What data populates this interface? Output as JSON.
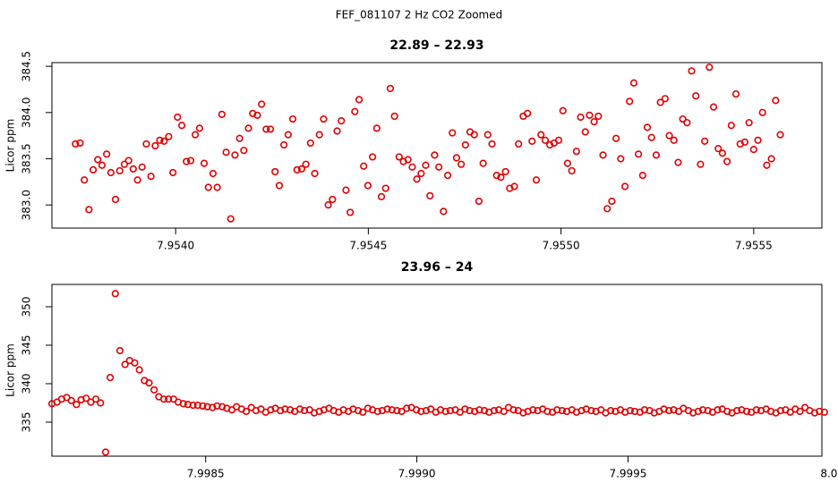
{
  "title": "FEF_081107  2 Hz CO2 Zoomed",
  "chart_data": [
    {
      "type": "scatter",
      "title": "22.89 – 22.93",
      "ylabel": "Licor ppm",
      "color": "#e00000",
      "xlim": [
        7.953679,
        7.955677
      ],
      "ylim": [
        382.75,
        384.54
      ],
      "xticks": [
        {
          "value": 7.954,
          "label": "7.9540"
        },
        7.9545,
        {
          "value": 7.955,
          "label": "7.9550"
        },
        7.9555
      ],
      "yticks": [
        {
          "value": 383,
          "label": "383.0"
        },
        383.5,
        {
          "value": 384,
          "label": "384.0"
        },
        384.5
      ],
      "x": [
        7.95374,
        7.953752,
        7.953763,
        7.953775,
        7.953786,
        7.953798,
        7.953809,
        7.953821,
        7.953832,
        7.953844,
        7.953855,
        7.953867,
        7.953878,
        7.95389,
        7.953901,
        7.953913,
        7.953924,
        7.953936,
        7.953947,
        7.953959,
        7.95397,
        7.953982,
        7.953993,
        7.954005,
        7.954016,
        7.954028,
        7.954039,
        7.954051,
        7.954062,
        7.954074,
        7.954085,
        7.954097,
        7.954108,
        7.95412,
        7.954131,
        7.954143,
        7.954154,
        7.954166,
        7.954177,
        7.954189,
        7.9542,
        7.954212,
        7.954223,
        7.954235,
        7.954246,
        7.954258,
        7.954269,
        7.954281,
        7.954292,
        7.954304,
        7.954315,
        7.954327,
        7.954338,
        7.95435,
        7.954361,
        7.954373,
        7.954384,
        7.954396,
        7.954407,
        7.954419,
        7.95443,
        7.954442,
        7.954453,
        7.954465,
        7.954476,
        7.954488,
        7.954499,
        7.954511,
        7.954522,
        7.954534,
        7.954545,
        7.954557,
        7.954568,
        7.95458,
        7.954591,
        7.954603,
        7.954614,
        7.954626,
        7.954637,
        7.954649,
        7.95466,
        7.954672,
        7.954683,
        7.954695,
        7.954706,
        7.954718,
        7.954729,
        7.954741,
        7.954752,
        7.954764,
        7.954775,
        7.954787,
        7.954798,
        7.95481,
        7.954821,
        7.954833,
        7.954844,
        7.954856,
        7.954867,
        7.954879,
        7.95489,
        7.954902,
        7.954913,
        7.954925,
        7.954936,
        7.954948,
        7.954959,
        7.954971,
        7.954982,
        7.954994,
        7.955005,
        7.955017,
        7.955028,
        7.95504,
        7.955051,
        7.955063,
        7.955074,
        7.955086,
        7.955097,
        7.955109,
        7.95512,
        7.955132,
        7.955143,
        7.955155,
        7.955166,
        7.955178,
        7.955189,
        7.955201,
        7.955212,
        7.955224,
        7.955235,
        7.955247,
        7.955258,
        7.95527,
        7.955281,
        7.955293,
        7.955304,
        7.955316,
        7.955327,
        7.955339,
        7.95535,
        7.955362,
        7.955373,
        7.955385,
        7.955396,
        7.955408,
        7.955419,
        7.955431,
        7.955442,
        7.955454,
        7.955465,
        7.955477,
        7.955488,
        7.9555,
        7.955511,
        7.955523,
        7.955534,
        7.955546,
        7.955557,
        7.955569
      ],
      "values": [
        383.66,
        383.67,
        383.27,
        382.95,
        383.38,
        383.49,
        383.43,
        383.55,
        383.35,
        383.06,
        383.37,
        383.44,
        383.48,
        383.39,
        383.27,
        383.41,
        383.66,
        383.31,
        383.64,
        383.7,
        383.69,
        383.74,
        383.35,
        383.95,
        383.86,
        383.47,
        383.48,
        383.76,
        383.83,
        383.45,
        383.19,
        383.34,
        383.19,
        383.98,
        383.57,
        382.85,
        383.54,
        383.72,
        383.59,
        383.83,
        383.99,
        383.97,
        384.09,
        383.82,
        383.82,
        383.36,
        383.21,
        383.65,
        383.76,
        383.93,
        383.38,
        383.39,
        383.44,
        383.67,
        383.34,
        383.76,
        383.93,
        383.0,
        383.06,
        383.8,
        383.91,
        383.16,
        382.92,
        384.01,
        384.14,
        383.42,
        383.21,
        383.52,
        383.83,
        383.09,
        383.18,
        384.26,
        383.96,
        383.52,
        383.47,
        383.49,
        383.41,
        383.28,
        383.34,
        383.43,
        383.1,
        383.54,
        383.41,
        382.93,
        383.32,
        383.78,
        383.51,
        383.44,
        383.65,
        383.79,
        383.76,
        383.04,
        383.45,
        383.76,
        383.66,
        383.32,
        383.3,
        383.36,
        383.18,
        383.2,
        383.66,
        383.96,
        383.99,
        383.69,
        383.27,
        383.76,
        383.7,
        383.65,
        383.67,
        383.7,
        384.02,
        383.45,
        383.37,
        383.58,
        383.95,
        383.79,
        383.97,
        383.9,
        383.96,
        383.54,
        382.96,
        383.04,
        383.72,
        383.5,
        383.2,
        384.12,
        384.32,
        383.55,
        383.32,
        383.84,
        383.73,
        383.54,
        384.11,
        384.15,
        383.75,
        383.7,
        383.46,
        383.93,
        383.89,
        384.45,
        384.18,
        383.44,
        383.69,
        384.49,
        384.06,
        383.61,
        383.56,
        383.47,
        383.86,
        384.2,
        383.66,
        383.68,
        383.89,
        383.6,
        383.7,
        384.0,
        383.43,
        383.5,
        384.13,
        383.76
      ]
    },
    {
      "type": "scatter",
      "title": "23.96 – 24",
      "ylabel": "Licor ppm",
      "color": "#e00000",
      "xlim": [
        7.998136,
        7.999959
      ],
      "ylim": [
        330.58,
        352.9
      ],
      "xticks": [
        7.9985,
        {
          "value": 7.999,
          "label": "7.9990"
        },
        7.9995,
        {
          "value": 8,
          "label": "8.0000"
        }
      ],
      "yticks": [
        335,
        340,
        345,
        350
      ],
      "x": [
        7.998136,
        7.998148,
        7.998159,
        7.998171,
        7.998182,
        7.998194,
        7.998205,
        7.998217,
        7.998228,
        7.99824,
        7.998251,
        7.998263,
        7.998274,
        7.998286,
        7.998297,
        7.998309,
        7.99832,
        7.998332,
        7.998343,
        7.998355,
        7.998366,
        7.998378,
        7.998389,
        7.998401,
        7.998412,
        7.998424,
        7.998435,
        7.998447,
        7.998458,
        7.99847,
        7.998481,
        7.998493,
        7.998504,
        7.998516,
        7.998527,
        7.998539,
        7.99855,
        7.998562,
        7.998573,
        7.998585,
        7.998596,
        7.998608,
        7.998619,
        7.998631,
        7.998642,
        7.998654,
        7.998665,
        7.998677,
        7.998688,
        7.9987,
        7.998711,
        7.998723,
        7.998734,
        7.998746,
        7.998757,
        7.998769,
        7.99878,
        7.998792,
        7.998803,
        7.998815,
        7.998826,
        7.998838,
        7.998849,
        7.998861,
        7.998872,
        7.998884,
        7.998895,
        7.998907,
        7.998918,
        7.99893,
        7.998941,
        7.998953,
        7.998964,
        7.998976,
        7.998987,
        7.998999,
        7.99901,
        7.999022,
        7.999033,
        7.999045,
        7.999056,
        7.999068,
        7.999079,
        7.999091,
        7.999102,
        7.999114,
        7.999125,
        7.999137,
        7.999148,
        7.99916,
        7.999171,
        7.999183,
        7.999194,
        7.999206,
        7.999217,
        7.999229,
        7.99924,
        7.999252,
        7.999263,
        7.999275,
        7.999286,
        7.999298,
        7.999309,
        7.999321,
        7.999332,
        7.999344,
        7.999355,
        7.999367,
        7.999378,
        7.99939,
        7.999401,
        7.999413,
        7.999424,
        7.999436,
        7.999447,
        7.999459,
        7.99947,
        7.999482,
        7.999493,
        7.999505,
        7.999516,
        7.999528,
        7.999539,
        7.999551,
        7.999562,
        7.999574,
        7.999585,
        7.999597,
        7.999608,
        7.99962,
        7.999631,
        7.999643,
        7.999654,
        7.999666,
        7.999677,
        7.999689,
        7.9997,
        7.999712,
        7.999723,
        7.999735,
        7.999746,
        7.999758,
        7.999769,
        7.999781,
        7.999792,
        7.999804,
        7.999815,
        7.999827,
        7.999838,
        7.99985,
        7.999861,
        7.999873,
        7.999884,
        7.999896,
        7.999907,
        7.999919,
        7.99993,
        7.999942,
        7.999953,
        7.999965
      ],
      "values": [
        337.4,
        337.6,
        338.0,
        338.2,
        337.8,
        337.3,
        337.9,
        338.1,
        337.6,
        338.0,
        337.5,
        331.1,
        340.8,
        351.7,
        344.3,
        342.5,
        343.0,
        342.7,
        341.8,
        340.4,
        340.1,
        339.2,
        338.3,
        338.0,
        338.0,
        338.0,
        337.6,
        337.4,
        337.3,
        337.2,
        337.2,
        337.1,
        337.0,
        336.9,
        337.1,
        337.0,
        336.8,
        336.6,
        337.0,
        336.7,
        336.4,
        336.9,
        336.5,
        336.7,
        336.3,
        336.6,
        336.8,
        336.5,
        336.7,
        336.6,
        336.4,
        336.7,
        336.5,
        336.6,
        336.2,
        336.4,
        336.6,
        336.8,
        336.5,
        336.3,
        336.6,
        336.4,
        336.7,
        336.5,
        336.3,
        336.8,
        336.6,
        336.4,
        336.5,
        336.7,
        336.6,
        336.5,
        336.4,
        336.8,
        336.9,
        336.6,
        336.4,
        336.5,
        336.7,
        336.3,
        336.6,
        336.4,
        336.5,
        336.6,
        336.3,
        336.7,
        336.5,
        336.4,
        336.6,
        336.5,
        336.3,
        336.5,
        336.6,
        336.4,
        336.9,
        336.6,
        336.5,
        336.2,
        336.4,
        336.6,
        336.5,
        336.7,
        336.4,
        336.3,
        336.6,
        336.5,
        336.4,
        336.6,
        336.3,
        336.5,
        336.7,
        336.5,
        336.4,
        336.6,
        336.2,
        336.5,
        336.4,
        336.6,
        336.3,
        336.5,
        336.4,
        336.3,
        336.6,
        336.5,
        336.2,
        336.4,
        336.7,
        336.5,
        336.6,
        336.4,
        336.8,
        336.5,
        336.2,
        336.4,
        336.6,
        336.5,
        336.3,
        336.6,
        336.7,
        336.4,
        336.2,
        336.5,
        336.6,
        336.4,
        336.3,
        336.6,
        336.5,
        336.7,
        336.4,
        336.2,
        336.5,
        336.6,
        336.3,
        336.7,
        336.4,
        336.9,
        336.5,
        336.2,
        336.4,
        336.3
      ]
    }
  ]
}
